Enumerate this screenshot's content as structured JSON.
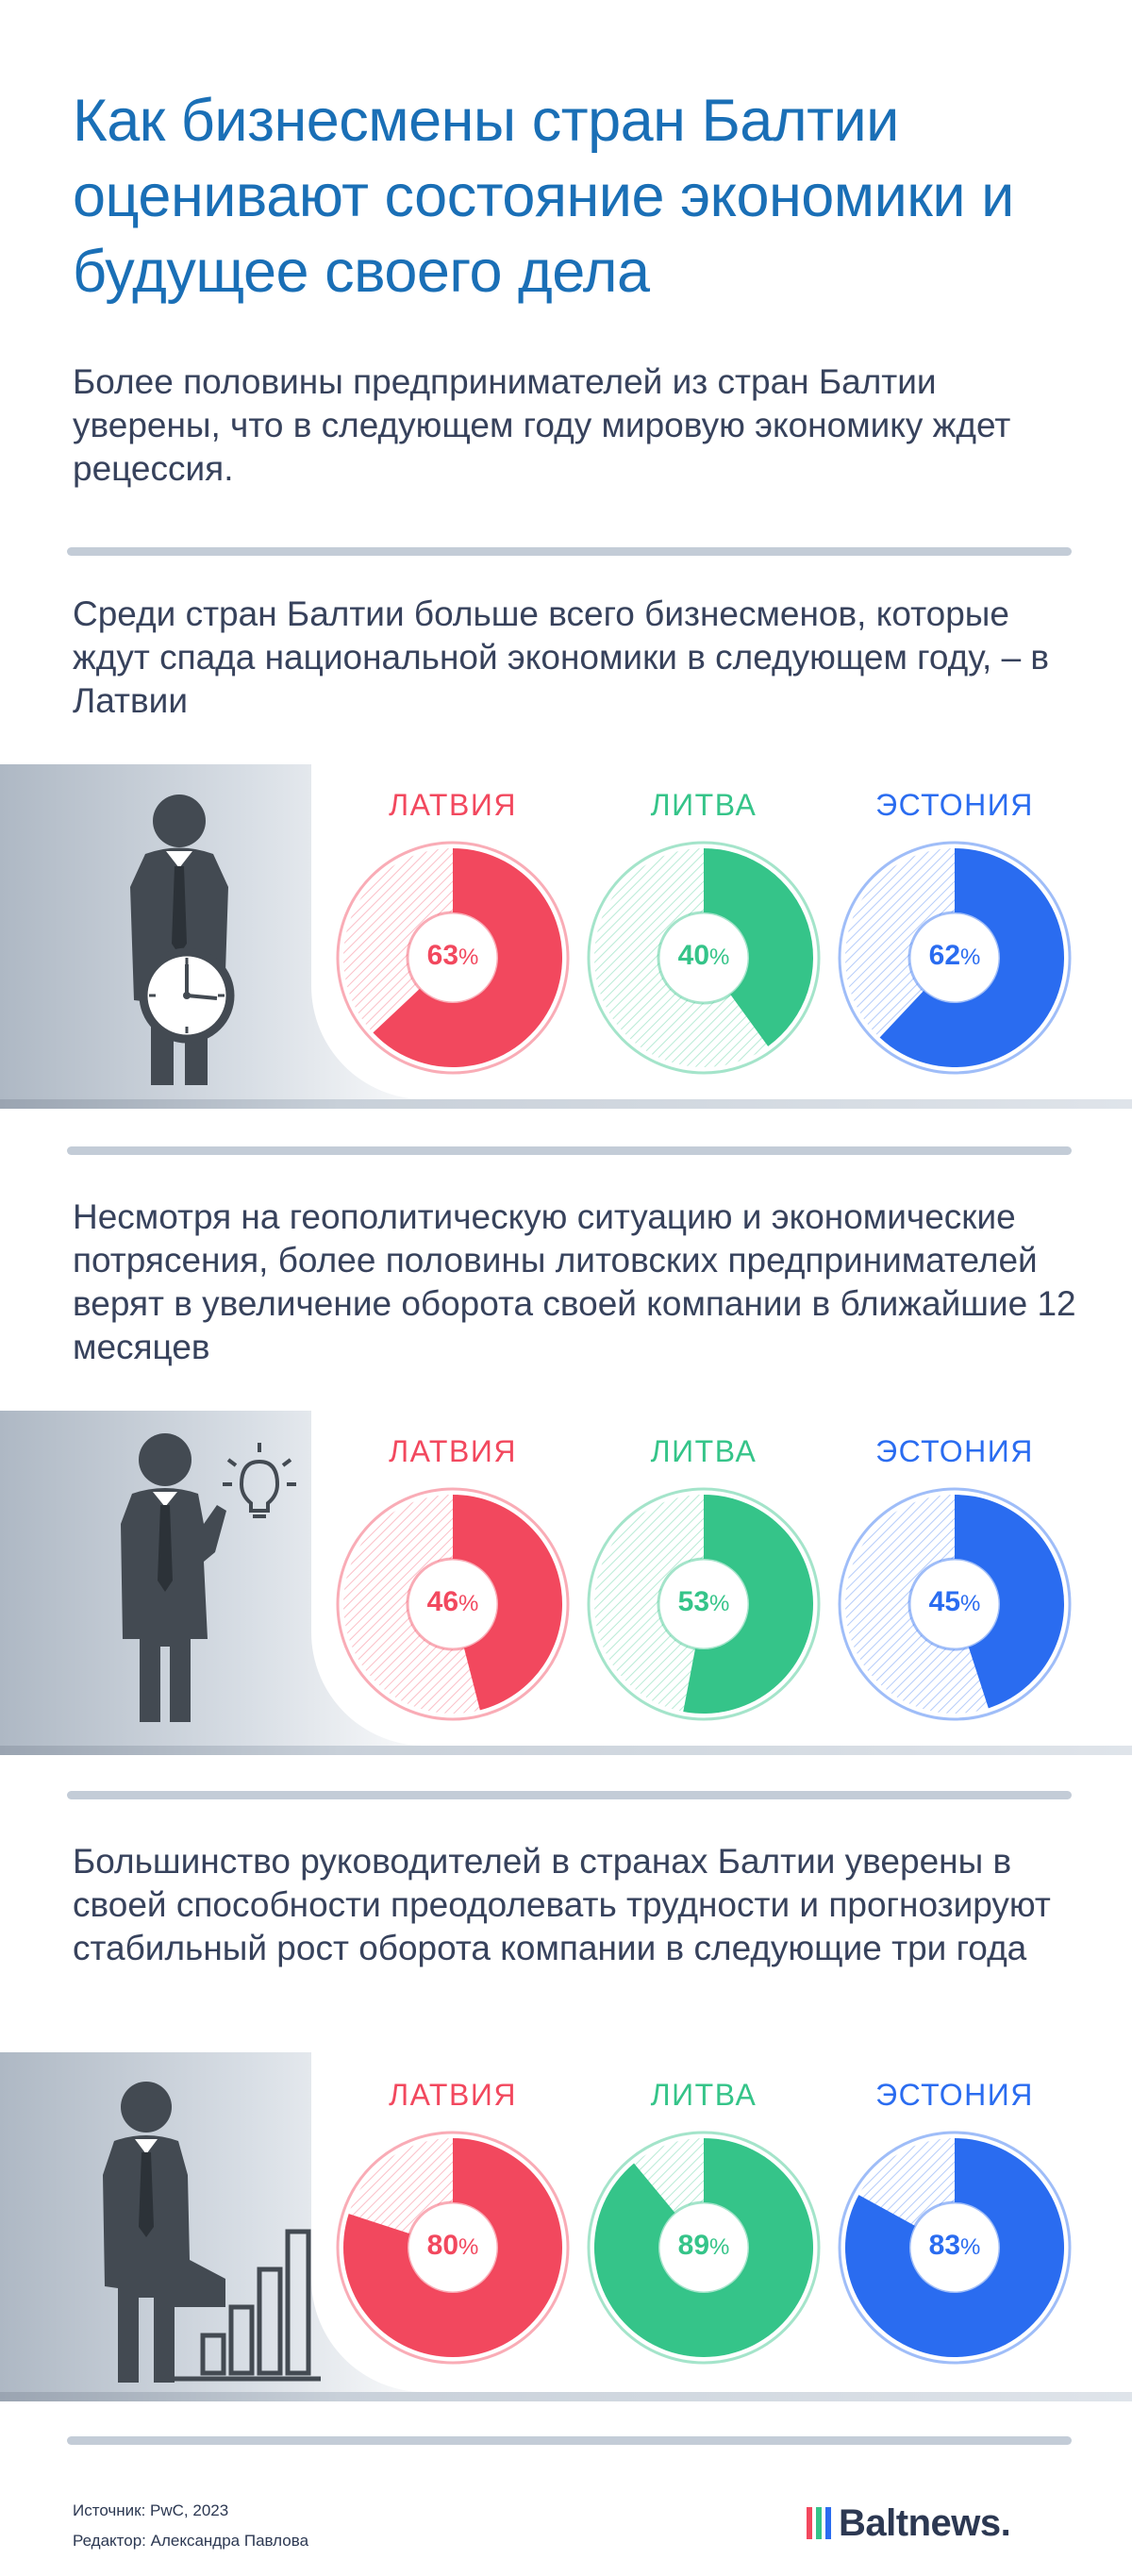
{
  "title": "Как бизнесмены стран Балтии оценивают состояние экономики и будущее своего дела",
  "intro": "Более половины предпринимателей из стран Балтии уверены, что в следующем году мировую экономику ждет рецессия.",
  "colors": {
    "title": "#1a6fb6",
    "latvia": "#f2485e",
    "lithuania": "#35c489",
    "estonia": "#2a6cf0",
    "figure": "#434a52",
    "divider": "#c3ccd7"
  },
  "percent_sign": "%",
  "sections": [
    {
      "text": "Среди стран Балтии больше всего бизнесменов, которые ждут спада национальной экономики в следующем году, – в Латвии",
      "figure_icon": "businessman-with-clock-icon"
    },
    {
      "text": "Несмотря на геополитическую ситуацию и экономические потрясения, более половины литовских предпринимателей верят в увеличение оборота своей компании в ближайшие 12 месяцев",
      "figure_icon": "businessman-with-lightbulb-icon"
    },
    {
      "text": "Большинство руководителей в странах Балтии уверены в своей способности преодолевать трудности и прогнозируют стабильный рост оборота компании в следующие три года",
      "figure_icon": "businessman-climbing-bar-chart-icon"
    }
  ],
  "chart_data": [
    {
      "type": "pie",
      "categories": [
        "ЛАТВИЯ",
        "ЛИТВА",
        "ЭСТОНИЯ"
      ],
      "values": [
        63,
        40,
        62
      ],
      "unit": "%"
    },
    {
      "type": "pie",
      "categories": [
        "ЛАТВИЯ",
        "ЛИТВА",
        "ЭСТОНИЯ"
      ],
      "values": [
        46,
        53,
        45
      ],
      "unit": "%"
    },
    {
      "type": "pie",
      "categories": [
        "ЛАТВИЯ",
        "ЛИТВА",
        "ЭСТОНИЯ"
      ],
      "values": [
        80,
        89,
        83
      ],
      "unit": "%"
    }
  ],
  "footer": {
    "source": "Источник: PwC, 2023",
    "editor": "Редактор: Александра Павлова",
    "logo": "Baltnews.",
    "logo_bar_colors": [
      "#f2485e",
      "#35c489",
      "#2a6cf0"
    ]
  }
}
